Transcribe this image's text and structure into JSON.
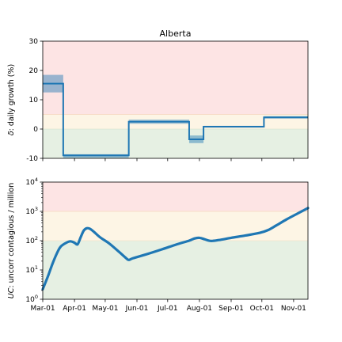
{
  "chart_data": [
    {
      "type": "line",
      "title": "Alberta",
      "ylabel_symbol": "δ",
      "ylabel_text": ": daily growth (%)",
      "ylim": [
        -10,
        30
      ],
      "yticks": [
        -10,
        0,
        10,
        20,
        30
      ],
      "grid": false,
      "bands": [
        {
          "from": -10,
          "to": 0,
          "color": "#e6f0e3"
        },
        {
          "from": 0,
          "to": 5,
          "color": "#fdf5e5"
        },
        {
          "from": 5,
          "to": 30,
          "color": "#fde4e4"
        }
      ],
      "series": [
        {
          "color": "#1f77b4",
          "points": [
            [
              "2020-03-01",
              15.5
            ],
            [
              "2020-03-21",
              15.5
            ],
            [
              "2020-03-21",
              -9
            ],
            [
              "2020-04-23",
              -9
            ],
            [
              "2020-05-24",
              -9
            ],
            [
              "2020-05-24",
              2.5
            ],
            [
              "2020-07-22",
              2.5
            ],
            [
              "2020-07-22",
              -3.5
            ],
            [
              "2020-08-05",
              -3.5
            ],
            [
              "2020-08-05",
              0.8
            ],
            [
              "2020-10-03",
              0.8
            ],
            [
              "2020-10-03",
              4
            ],
            [
              "2020-11-15",
              4
            ]
          ]
        }
      ],
      "uncertainty": [
        {
          "x0": "2020-03-01",
          "x1": "2020-03-21",
          "lo": 12.5,
          "hi": 18.5
        },
        {
          "x0": "2020-03-21",
          "x1": "2020-05-24",
          "lo": -9.8,
          "hi": -8.6
        },
        {
          "x0": "2020-05-24",
          "x1": "2020-07-22",
          "lo": 1.8,
          "hi": 3.2
        },
        {
          "x0": "2020-07-22",
          "x1": "2020-08-05",
          "lo": -4.8,
          "hi": -2.2
        },
        {
          "x0": "2020-08-05",
          "x1": "2020-10-03",
          "lo": 0.5,
          "hi": 1.1
        },
        {
          "x0": "2020-10-03",
          "x1": "2020-11-15",
          "lo": 3.6,
          "hi": 4.4
        }
      ]
    },
    {
      "type": "line",
      "yscale": "log",
      "ylabel_symbol": "UC",
      "ylabel_text": ": uncorr contagious / million",
      "ylim": [
        1,
        10000
      ],
      "yticks": [
        {
          "v": 1,
          "e": "0"
        },
        {
          "v": 10,
          "e": "1"
        },
        {
          "v": 100,
          "e": "2"
        },
        {
          "v": 1000,
          "e": "3"
        },
        {
          "v": 10000,
          "e": "4"
        }
      ],
      "grid": false,
      "bands": [
        {
          "from": 1,
          "to": 100,
          "color": "#e6f0e3"
        },
        {
          "from": 100,
          "to": 1000,
          "color": "#fdf5e5"
        },
        {
          "from": 1000,
          "to": 10000,
          "color": "#fde4e4"
        }
      ],
      "x_range": [
        "2020-03-01",
        "2020-11-15"
      ],
      "xticks": [
        {
          "date": "2020-03-01",
          "label": "Mar-01"
        },
        {
          "date": "2020-04-01",
          "label": "Apr-01"
        },
        {
          "date": "2020-05-01",
          "label": "May-01"
        },
        {
          "date": "2020-06-01",
          "label": "Jun-01"
        },
        {
          "date": "2020-07-01",
          "label": "Jul-01"
        },
        {
          "date": "2020-08-01",
          "label": "Aug-01"
        },
        {
          "date": "2020-09-01",
          "label": "Sep-01"
        },
        {
          "date": "2020-10-01",
          "label": "Oct-01"
        },
        {
          "date": "2020-11-01",
          "label": "Nov-01"
        }
      ],
      "series": [
        {
          "color": "#1f77b4",
          "points": [
            [
              "2020-03-01",
              2.2
            ],
            [
              "2020-03-06",
              6
            ],
            [
              "2020-03-11",
              18
            ],
            [
              "2020-03-16",
              45
            ],
            [
              "2020-03-19",
              65
            ],
            [
              "2020-03-24",
              85
            ],
            [
              "2020-03-28",
              95
            ],
            [
              "2020-04-01",
              85
            ],
            [
              "2020-04-04",
              75
            ],
            [
              "2020-04-07",
              130
            ],
            [
              "2020-04-10",
              220
            ],
            [
              "2020-04-13",
              265
            ],
            [
              "2020-04-16",
              255
            ],
            [
              "2020-04-20",
              200
            ],
            [
              "2020-04-26",
              130
            ],
            [
              "2020-05-05",
              80
            ],
            [
              "2020-05-15",
              40
            ],
            [
              "2020-05-21",
              26
            ],
            [
              "2020-05-24",
              22
            ],
            [
              "2020-05-28",
              25
            ],
            [
              "2020-06-10",
              34
            ],
            [
              "2020-06-25",
              50
            ],
            [
              "2020-07-10",
              75
            ],
            [
              "2020-07-22",
              100
            ],
            [
              "2020-07-27",
              118
            ],
            [
              "2020-08-01",
              125
            ],
            [
              "2020-08-06",
              112
            ],
            [
              "2020-08-12",
              98
            ],
            [
              "2020-08-20",
              105
            ],
            [
              "2020-09-01",
              125
            ],
            [
              "2020-09-15",
              150
            ],
            [
              "2020-09-29",
              185
            ],
            [
              "2020-10-07",
              230
            ],
            [
              "2020-10-15",
              330
            ],
            [
              "2020-10-25",
              530
            ],
            [
              "2020-11-05",
              850
            ],
            [
              "2020-11-15",
              1300
            ]
          ]
        }
      ]
    }
  ]
}
